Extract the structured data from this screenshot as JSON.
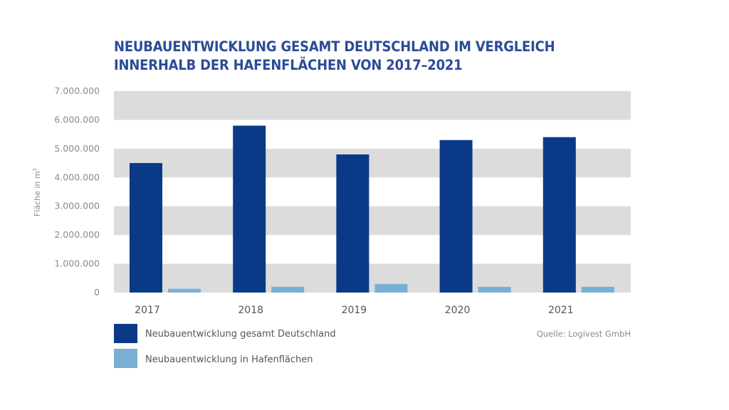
{
  "chart_data": {
    "type": "bar",
    "title_lines": [
      "NEUBAUENTWICKLUNG GESAMT DEUTSCHLAND IM VERGLEICH",
      "INNERHALB DER HAFENFLÄCHEN VON 2017–2021"
    ],
    "categories": [
      "2017",
      "2018",
      "2019",
      "2020",
      "2021"
    ],
    "series": [
      {
        "name": "Neubauentwicklung gesamt Deutschland",
        "color": "#0a3a87",
        "values": [
          4500000,
          5800000,
          4800000,
          5300000,
          5400000
        ]
      },
      {
        "name": "Neubauentwicklung in Hafenflächen",
        "color": "#7aafd4",
        "values": [
          130000,
          200000,
          300000,
          200000,
          200000
        ]
      }
    ],
    "xlabel": "",
    "ylabel": "Fläche in m",
    "ylabel_superscript": "2",
    "ylim": [
      0,
      7000000
    ],
    "yticks": [
      0,
      1000000,
      2000000,
      3000000,
      4000000,
      5000000,
      6000000,
      7000000
    ],
    "ytick_labels": [
      "0",
      "1.000.000",
      "2.000.000",
      "3.000.000",
      "4.000.000",
      "5.000.000",
      "6.000.000",
      "7.000.000"
    ],
    "grid": "alternating horizontal bands",
    "band_color": "#dcdcdc",
    "legend_position": "bottom-left",
    "source": "Quelle: Logivest GmbH"
  }
}
